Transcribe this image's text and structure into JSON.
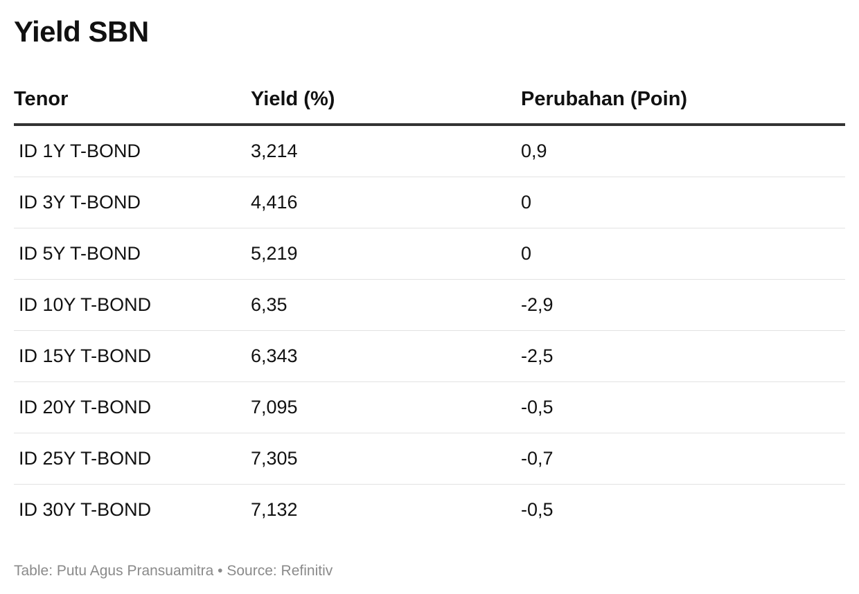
{
  "chart_data": {
    "type": "table",
    "title": "Yield SBN",
    "columns": [
      "Tenor",
      "Yield (%)",
      "Perubahan (Poin)"
    ],
    "rows": [
      [
        "ID 1Y T-BOND",
        "3,214",
        "0,9"
      ],
      [
        "ID 3Y T-BOND",
        "4,416",
        "0"
      ],
      [
        "ID 5Y T-BOND",
        "5,219",
        "0"
      ],
      [
        "ID 10Y T-BOND",
        "6,35",
        "-2,9"
      ],
      [
        "ID 15Y T-BOND",
        "6,343",
        "-2,5"
      ],
      [
        "ID 20Y T-BOND",
        "7,095",
        "-0,5"
      ],
      [
        "ID 25Y T-BOND",
        "7,305",
        "-0,7"
      ],
      [
        "ID 30Y T-BOND",
        "7,132",
        "-0,5"
      ]
    ]
  },
  "footer": {
    "text": "Table: Putu Agus Pransuamitra • Source: Refinitiv"
  }
}
